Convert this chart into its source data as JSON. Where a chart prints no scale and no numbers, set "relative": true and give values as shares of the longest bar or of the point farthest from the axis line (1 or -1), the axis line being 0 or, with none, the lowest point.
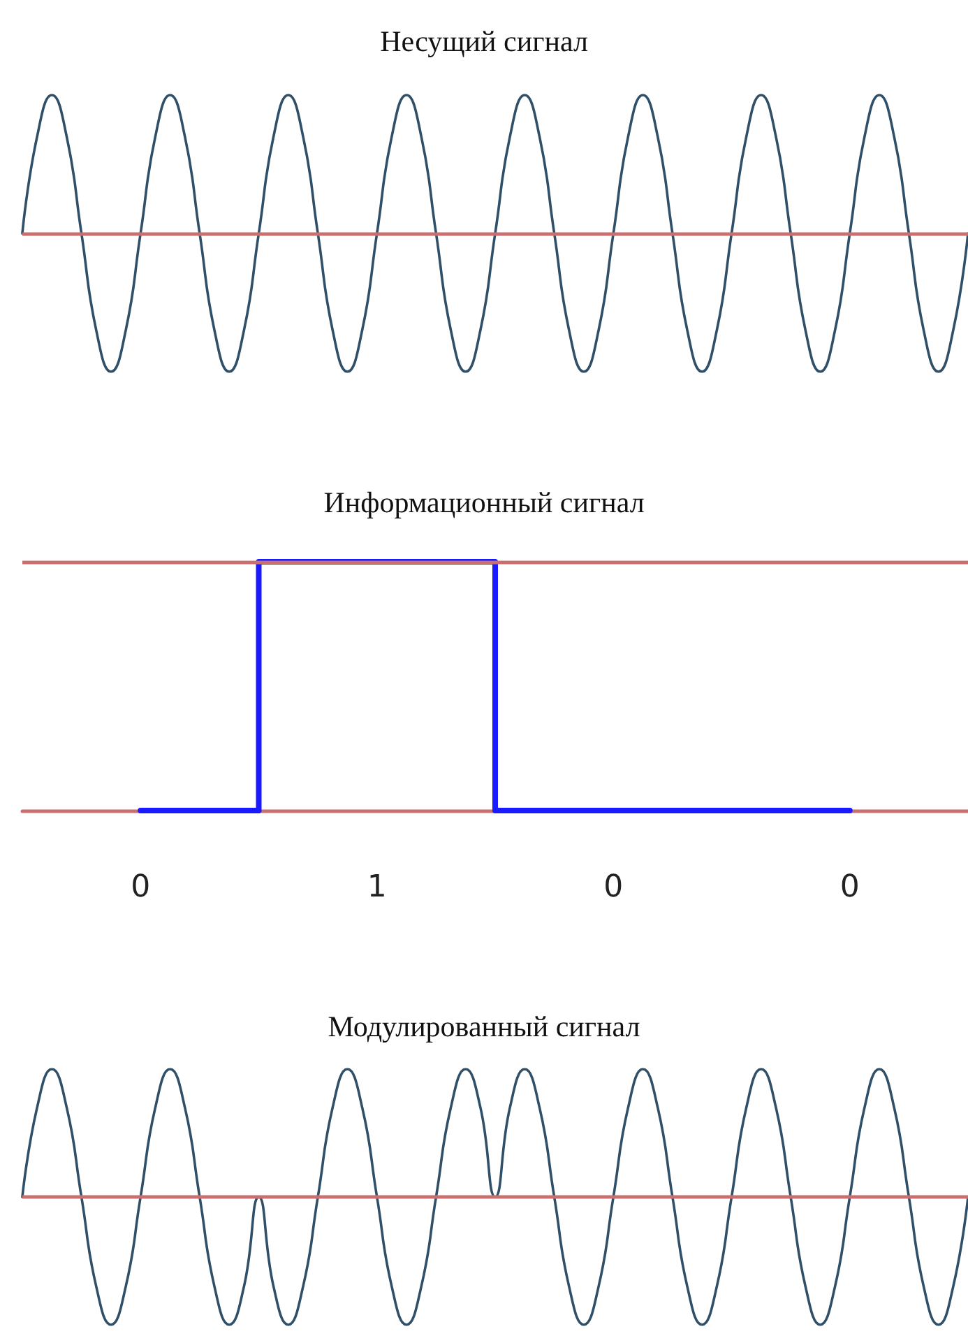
{
  "chart_data": [
    {
      "type": "line",
      "title": "Несущий сигнал",
      "relative": true,
      "marker": "none",
      "line_style": "solid",
      "categories": [
        null,
        null,
        null,
        null,
        null,
        null,
        null,
        null,
        null,
        null,
        null,
        null,
        null,
        null,
        null,
        null,
        null,
        null,
        null,
        null,
        null,
        null,
        null,
        null,
        null,
        null,
        null,
        null,
        null,
        null,
        null,
        null,
        null,
        null,
        null,
        null,
        null,
        null,
        null,
        null,
        null,
        null,
        null,
        null,
        null,
        null,
        null,
        null,
        null,
        null,
        null,
        null,
        null,
        null,
        null,
        null,
        null,
        null,
        null,
        null,
        null,
        null,
        null,
        null,
        null
      ],
      "series": [
        {
          "color": "#2f5068",
          "values": [
            0,
            0.7,
            1,
            0.7,
            0,
            -0.7,
            -1,
            -0.7,
            0,
            0.7,
            1,
            0.7,
            0,
            -0.7,
            -1,
            -0.7,
            0,
            0.7,
            1,
            0.7,
            0,
            -0.7,
            -1,
            -0.7,
            0,
            0.7,
            1,
            0.7,
            0,
            -0.7,
            -1,
            -0.7,
            0,
            0.7,
            1,
            0.7,
            0,
            -0.7,
            -1,
            -0.7,
            0,
            0.7,
            1,
            0.7,
            0,
            -0.7,
            -1,
            -0.7,
            0,
            0.7,
            1,
            0.7,
            0,
            -0.7,
            -1,
            -0.7,
            0,
            0.7,
            1,
            0.7,
            0,
            -0.7,
            -1,
            -0.7,
            0
          ]
        }
      ],
      "ref_lines": [
        {
          "axis": "y",
          "value": 0,
          "color": "#c87070"
        }
      ]
    },
    {
      "type": "step",
      "title": "Информационный сигнал",
      "relative": true,
      "marker": "none",
      "line_style": "solid",
      "categories": [
        "0",
        "1",
        "0",
        "0"
      ],
      "series": [
        {
          "color": "#1a1aff",
          "values": [
            0,
            1,
            0,
            0
          ]
        }
      ],
      "ref_lines": [
        {
          "axis": "y",
          "value": 1,
          "color": "#c87070"
        }
      ]
    },
    {
      "type": "line",
      "title": "Модулированный сигнал",
      "relative": true,
      "marker": "none",
      "line_style": "solid",
      "categories": [
        null,
        null,
        null,
        null,
        null,
        null,
        null,
        null,
        null,
        null,
        null,
        null,
        null,
        null,
        null,
        null,
        null,
        null,
        null,
        null,
        null,
        null,
        null,
        null,
        null,
        null,
        null,
        null,
        null,
        null,
        null,
        null,
        null,
        null,
        null,
        null,
        null,
        null,
        null,
        null,
        null,
        null,
        null,
        null,
        null,
        null,
        null,
        null,
        null,
        null,
        null,
        null,
        null,
        null,
        null,
        null,
        null,
        null,
        null,
        null,
        null,
        null,
        null,
        null,
        null
      ],
      "series": [
        {
          "color": "#2f5068",
          "values": [
            0,
            0.7,
            1,
            0.7,
            0,
            -0.7,
            -1,
            -0.7,
            0,
            0.7,
            1,
            0.7,
            0,
            -0.7,
            -1,
            -0.7,
            0,
            -0.7,
            -1,
            -0.7,
            0,
            0.7,
            1,
            0.7,
            0,
            -0.7,
            -1,
            -0.7,
            0,
            0.7,
            1,
            0.7,
            0,
            0.7,
            1,
            0.7,
            0,
            -0.7,
            -1,
            -0.7,
            0,
            0.7,
            1,
            0.7,
            0,
            -0.7,
            -1,
            -0.7,
            0,
            0.7,
            1,
            0.7,
            0,
            -0.7,
            -1,
            -0.7,
            0,
            0.7,
            1,
            0.7,
            0,
            -0.7,
            -1,
            -0.7,
            0
          ]
        }
      ],
      "ref_lines": [
        {
          "axis": "y",
          "value": 0,
          "color": "#c87070"
        }
      ]
    }
  ]
}
